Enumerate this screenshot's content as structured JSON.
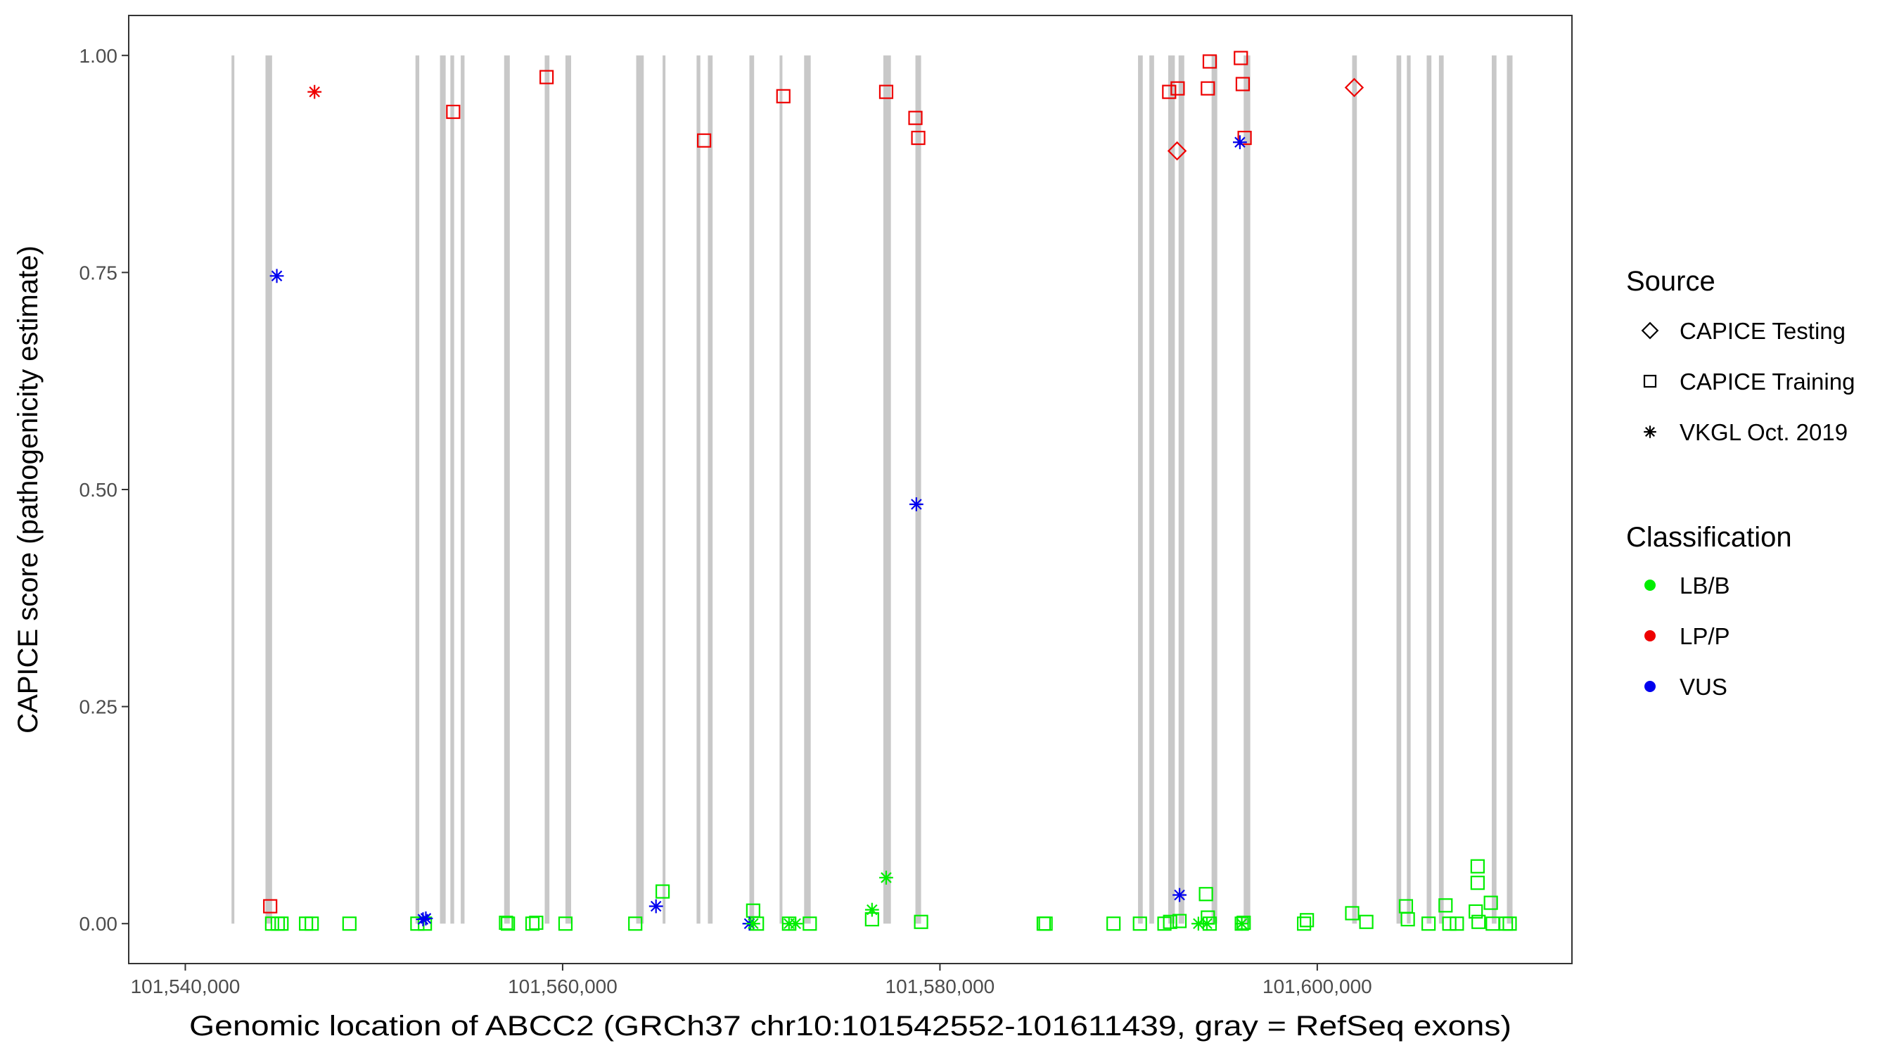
{
  "chart_data": {
    "type": "scatter",
    "xlabel": "Genomic location of ABCC2 (GRCh37 chr10:101542552-101611439, gray = RefSeq exons)",
    "ylabel": "CAPICE score (pathogenicity estimate)",
    "xlim": [
      101537000,
      101613500
    ],
    "ylim": [
      -0.046,
      1.046
    ],
    "x_ticks": [
      101540000,
      101560000,
      101580000,
      101600000
    ],
    "x_tick_labels": [
      "101,540,000",
      "101,560,000",
      "101,580,000",
      "101,600,000"
    ],
    "y_ticks": [
      0,
      0.25,
      0.5,
      0.75,
      1.0
    ],
    "y_tick_labels": [
      "0.00",
      "0.25",
      "0.50",
      "0.75",
      "1.00"
    ],
    "grid": false,
    "exons": [
      [
        101542450,
        101542600
      ],
      [
        101544250,
        101544600
      ],
      [
        101552200,
        101552400
      ],
      [
        101553500,
        101553800
      ],
      [
        101554050,
        101554250
      ],
      [
        101554600,
        101554800
      ],
      [
        101556900,
        101557200
      ],
      [
        101559050,
        101559300
      ],
      [
        101560150,
        101560450
      ],
      [
        101563900,
        101564300
      ],
      [
        101565300,
        101565450
      ],
      [
        101567100,
        101567300
      ],
      [
        101567700,
        101567950
      ],
      [
        101569900,
        101570150
      ],
      [
        101571500,
        101571650
      ],
      [
        101572800,
        101573150
      ],
      [
        101577000,
        101577400
      ],
      [
        101578700,
        101579000
      ],
      [
        101590500,
        101590750
      ],
      [
        101591100,
        101591350
      ],
      [
        101592100,
        101592450
      ],
      [
        101592650,
        101592950
      ],
      [
        101594400,
        101594700
      ],
      [
        101596100,
        101596450
      ],
      [
        101601850,
        101602100
      ],
      [
        101604200,
        101604450
      ],
      [
        101604750,
        101604950
      ],
      [
        101605800,
        101606050
      ],
      [
        101606450,
        101606700
      ],
      [
        101609250,
        101609500
      ],
      [
        101610050,
        101610350
      ]
    ],
    "series": [
      {
        "source": "CAPICE Testing",
        "classification": "LP/P",
        "points": [
          [
            101592570,
            0.89
          ],
          [
            101601960,
            0.963
          ]
        ]
      },
      {
        "source": "CAPICE Training",
        "classification": "LP/P",
        "points": [
          [
            101544500,
            0.02
          ],
          [
            101554200,
            0.935
          ],
          [
            101559150,
            0.975
          ],
          [
            101567500,
            0.902
          ],
          [
            101571700,
            0.953
          ],
          [
            101577150,
            0.958
          ],
          [
            101578700,
            0.928
          ],
          [
            101578850,
            0.905
          ],
          [
            101592150,
            0.958
          ],
          [
            101592600,
            0.962
          ],
          [
            101594200,
            0.962
          ],
          [
            101594300,
            0.993
          ],
          [
            101595950,
            0.997
          ],
          [
            101596050,
            0.967
          ],
          [
            101596150,
            0.905
          ]
        ]
      },
      {
        "source": "CAPICE Training",
        "classification": "LB/B",
        "points": [
          [
            101544600,
            0.0
          ],
          [
            101544900,
            0.0
          ],
          [
            101545100,
            0.0
          ],
          [
            101546400,
            0.0
          ],
          [
            101546700,
            0.0
          ],
          [
            101548700,
            0.0
          ],
          [
            101552300,
            0.0
          ],
          [
            101552700,
            0.0
          ],
          [
            101557000,
            0.001
          ],
          [
            101557100,
            0.0
          ],
          [
            101558400,
            0.0
          ],
          [
            101558600,
            0.001
          ],
          [
            101560150,
            0.0
          ],
          [
            101563850,
            0.0
          ],
          [
            101565300,
            0.037
          ],
          [
            101570100,
            0.015
          ],
          [
            101570300,
            0.0
          ],
          [
            101572000,
            0.0
          ],
          [
            101573100,
            0.0
          ],
          [
            101576400,
            0.005
          ],
          [
            101579000,
            0.002
          ],
          [
            101585500,
            0.0
          ],
          [
            101585600,
            0.0
          ],
          [
            101589200,
            0.0
          ],
          [
            101590600,
            0.0
          ],
          [
            101591900,
            0.0
          ],
          [
            101592200,
            0.002
          ],
          [
            101592700,
            0.003
          ],
          [
            101594100,
            0.034
          ],
          [
            101594200,
            0.007
          ],
          [
            101594300,
            0.0
          ],
          [
            101596000,
            0.0
          ],
          [
            101596100,
            0.001
          ],
          [
            101599300,
            0.0
          ],
          [
            101599450,
            0.004
          ],
          [
            101601850,
            0.012
          ],
          [
            101602600,
            0.002
          ],
          [
            101604700,
            0.02
          ],
          [
            101604800,
            0.005
          ],
          [
            101605900,
            0.0
          ],
          [
            101606800,
            0.021
          ],
          [
            101607000,
            0.0
          ],
          [
            101607400,
            0.0
          ],
          [
            101608500,
            0.066
          ],
          [
            101608500,
            0.047
          ],
          [
            101608400,
            0.014
          ],
          [
            101608550,
            0.002
          ],
          [
            101609200,
            0.024
          ],
          [
            101609300,
            0.0
          ],
          [
            101610000,
            0.0
          ],
          [
            101610200,
            0.0
          ]
        ]
      },
      {
        "source": "VKGL Oct. 2019",
        "classification": "LP/P",
        "points": [
          [
            101546850,
            0.958
          ]
        ]
      },
      {
        "source": "VKGL Oct. 2019",
        "classification": "VUS",
        "points": [
          [
            101544850,
            0.746
          ],
          [
            101552600,
            0.005
          ],
          [
            101552750,
            0.006
          ],
          [
            101564950,
            0.02
          ],
          [
            101569900,
            0.0
          ],
          [
            101578750,
            0.483
          ],
          [
            101592700,
            0.033
          ],
          [
            101595900,
            0.9
          ]
        ]
      },
      {
        "source": "VKGL Oct. 2019",
        "classification": "LB/B",
        "points": [
          [
            101570100,
            0.0
          ],
          [
            101572000,
            0.0
          ],
          [
            101572350,
            0.0
          ],
          [
            101576400,
            0.016
          ],
          [
            101577150,
            0.053
          ],
          [
            101593700,
            0.0
          ],
          [
            101594150,
            0.0
          ],
          [
            101596000,
            0.0
          ]
        ]
      }
    ],
    "legend": {
      "placement": "right",
      "source": {
        "title": "Source",
        "entries": [
          {
            "label": "CAPICE Testing",
            "shape": "diamond"
          },
          {
            "label": "CAPICE Training",
            "shape": "square"
          },
          {
            "label": "VKGL Oct. 2019",
            "shape": "asterisk"
          }
        ]
      },
      "classification": {
        "title": "Classification",
        "entries": [
          {
            "label": "LB/B",
            "color": "#00ee00"
          },
          {
            "label": "LP/P",
            "color": "#ee0000"
          },
          {
            "label": "VUS",
            "color": "#0000ee"
          }
        ]
      }
    },
    "colors": {
      "LB/B": "#00ee00",
      "LP/P": "#ee0000",
      "VUS": "#0000ee",
      "exon": "#c8c8c8",
      "axis": "#333333",
      "tick_text": "#4d4d4d"
    }
  }
}
